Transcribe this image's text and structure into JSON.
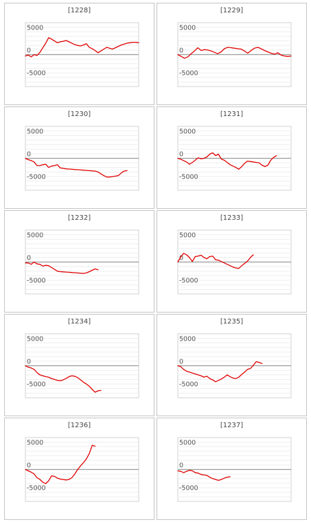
{
  "chart_data": [
    {
      "type": "line",
      "title": "[1228]",
      "ylim": [
        -7000,
        7000
      ],
      "yticks": [
        {
          "value": 5000,
          "label": "5000"
        },
        {
          "value": 0,
          "label": "0"
        },
        {
          "value": -5000,
          "label": "-5000"
        }
      ],
      "grid": true,
      "line_color": "#e00000",
      "x": [
        0,
        1,
        2,
        3,
        4,
        5,
        6,
        7,
        8,
        9,
        10,
        11,
        12,
        13,
        14,
        15,
        16,
        17,
        18,
        19,
        20,
        21,
        22,
        23,
        24,
        25,
        26,
        27,
        28,
        29,
        30,
        31,
        32,
        33,
        34,
        35,
        36,
        37,
        38,
        39
      ],
      "values": [
        -300,
        -100,
        -500,
        0,
        -200,
        500,
        1500,
        2500,
        3700,
        3400,
        3000,
        2600,
        2800,
        2900,
        3100,
        2800,
        2500,
        2200,
        2000,
        1900,
        2100,
        2400,
        1600,
        1300,
        900,
        400,
        800,
        1200,
        1600,
        1400,
        1200,
        1500,
        1800,
        2100,
        2300,
        2500,
        2600,
        2700,
        2700,
        2600
      ]
    },
    {
      "type": "line",
      "title": "[1229]",
      "ylim": [
        -7000,
        7000
      ],
      "yticks": [
        {
          "value": 5000,
          "label": "5000"
        },
        {
          "value": 0,
          "label": "0"
        },
        {
          "value": -5000,
          "label": "-5000"
        }
      ],
      "grid": true,
      "line_color": "#e00000",
      "x": [
        0,
        1,
        2,
        3,
        4,
        5,
        6,
        7,
        8,
        9,
        10,
        11,
        12,
        13,
        14,
        15,
        16,
        17,
        18,
        19,
        20,
        21,
        22,
        23,
        24,
        25,
        26,
        27,
        28,
        29,
        30,
        31,
        32,
        33,
        34
      ],
      "values": [
        0,
        -400,
        -800,
        -500,
        200,
        800,
        1500,
        900,
        1100,
        1000,
        800,
        500,
        200,
        600,
        1300,
        1600,
        1500,
        1400,
        1300,
        1200,
        800,
        300,
        900,
        1400,
        1600,
        1300,
        900,
        600,
        300,
        100,
        400,
        -100,
        -300,
        -400,
        -300
      ]
    },
    {
      "type": "line",
      "title": "[1230]",
      "ylim": [
        -7000,
        7000
      ],
      "yticks": [
        {
          "value": 5000,
          "label": "5000"
        },
        {
          "value": 0,
          "label": "0"
        },
        {
          "value": -5000,
          "label": "-5000"
        }
      ],
      "grid": true,
      "line_color": "#e00000",
      "x": [
        0,
        1,
        2,
        3,
        4,
        5,
        6,
        7,
        8,
        9,
        10,
        11,
        12,
        13,
        14,
        15,
        16,
        17,
        18,
        19,
        20,
        21,
        22,
        23,
        24,
        25,
        26,
        27,
        28,
        29,
        30,
        31,
        32,
        33,
        34,
        35,
        36,
        37,
        38,
        39
      ],
      "values": [
        0,
        -300,
        -500,
        -800,
        -1600,
        -1600,
        -1400,
        -1300,
        -2000,
        -1700,
        -1600,
        -1400,
        -2100,
        -2200,
        -2300,
        -2350,
        -2400,
        -2450,
        -2500,
        -2550,
        -2600,
        -2650,
        -2700,
        -2750,
        -2800,
        -3000,
        -3400,
        -3800,
        -4100,
        -4100,
        -4000,
        -3900,
        -3800,
        -3200,
        -2800,
        -2700,
        null,
        null,
        null,
        null
      ]
    },
    {
      "type": "line",
      "title": "[1231]",
      "ylim": [
        -7000,
        7000
      ],
      "yticks": [
        {
          "value": 5000,
          "label": "5000"
        },
        {
          "value": 0,
          "label": "0"
        },
        {
          "value": -5000,
          "label": "-5000"
        }
      ],
      "grid": true,
      "line_color": "#e00000",
      "x": [
        0,
        1,
        2,
        3,
        4,
        5,
        6,
        7,
        8,
        9,
        10,
        11,
        12,
        13,
        14,
        15,
        16,
        17,
        18,
        19,
        20,
        21,
        22,
        23,
        24,
        25,
        26,
        27,
        28,
        29,
        30,
        31,
        32,
        33,
        34,
        35,
        36,
        37,
        38,
        39
      ],
      "values": [
        0,
        -200,
        -500,
        -800,
        -1300,
        -900,
        -400,
        100,
        -100,
        0,
        300,
        900,
        1200,
        600,
        900,
        -200,
        -400,
        -900,
        -1400,
        -1700,
        -2000,
        -2400,
        -1800,
        -1100,
        -600,
        -700,
        -800,
        -900,
        -1000,
        -1500,
        -1800,
        -1500,
        -400,
        200,
        600,
        null,
        null,
        null,
        null,
        null
      ]
    },
    {
      "type": "line",
      "title": "[1232]",
      "ylim": [
        -7000,
        7000
      ],
      "yticks": [
        {
          "value": 5000,
          "label": "5000"
        },
        {
          "value": 0,
          "label": "0"
        },
        {
          "value": -5000,
          "label": "-5000"
        }
      ],
      "grid": true,
      "line_color": "#e00000",
      "x": [
        0,
        1,
        2,
        3,
        4,
        5,
        6,
        7,
        8,
        9,
        10,
        11,
        12,
        13,
        14,
        15,
        16,
        17,
        18,
        19,
        20,
        21,
        22,
        23,
        24,
        25,
        26,
        27,
        28,
        29,
        30,
        31,
        32,
        33,
        34,
        35,
        36,
        37,
        38,
        39
      ],
      "values": [
        -200,
        -200,
        -500,
        0,
        -400,
        -500,
        -900,
        -700,
        -800,
        -1200,
        -1600,
        -2000,
        -2100,
        -2150,
        -2200,
        -2250,
        -2300,
        -2350,
        -2400,
        -2450,
        -2500,
        -2400,
        -2100,
        -1800,
        -1500,
        -1700,
        null,
        null,
        null,
        null,
        null,
        null,
        null,
        null,
        null,
        null,
        null,
        null,
        null,
        null
      ]
    },
    {
      "type": "line",
      "title": "[1233]",
      "ylim": [
        -7000,
        7000
      ],
      "yticks": [
        {
          "value": 5000,
          "label": "5000"
        },
        {
          "value": 0,
          "label": "0"
        },
        {
          "value": -5000,
          "label": "-5000"
        }
      ],
      "grid": true,
      "line_color": "#e00000",
      "x": [
        0,
        1,
        2,
        3,
        4,
        5,
        6,
        7,
        8,
        9,
        10,
        11,
        12,
        13,
        14,
        15,
        16,
        17,
        18,
        19,
        20,
        21,
        22,
        23,
        24,
        25,
        26,
        27,
        28,
        29,
        30,
        31,
        32,
        33,
        34,
        35,
        36,
        37,
        38,
        39
      ],
      "values": [
        0,
        1100,
        1900,
        1600,
        1000,
        100,
        1200,
        1300,
        1500,
        1000,
        700,
        1200,
        1300,
        500,
        400,
        100,
        -200,
        -500,
        -800,
        -1100,
        -1300,
        -1400,
        -800,
        -300,
        200,
        1000,
        1600,
        null,
        null,
        null,
        null,
        null,
        null,
        null,
        null,
        null,
        null,
        null,
        null,
        null
      ]
    },
    {
      "type": "line",
      "title": "[1234]",
      "ylim": [
        -7000,
        7000
      ],
      "yticks": [
        {
          "value": 5000,
          "label": "5000"
        },
        {
          "value": 0,
          "label": "0"
        },
        {
          "value": -5000,
          "label": "-5000"
        }
      ],
      "grid": true,
      "line_color": "#e00000",
      "x": [
        0,
        1,
        2,
        3,
        4,
        5,
        6,
        7,
        8,
        9,
        10,
        11,
        12,
        13,
        14,
        15,
        16,
        17,
        18,
        19,
        20,
        21,
        22,
        23,
        24,
        25,
        26,
        27,
        28,
        29,
        30,
        31,
        32,
        33,
        34,
        35,
        36,
        37,
        38,
        39
      ],
      "values": [
        0,
        -300,
        -500,
        -800,
        -1500,
        -2000,
        -2200,
        -2400,
        -2500,
        -2800,
        -3000,
        -3200,
        -3300,
        -3100,
        -2800,
        -2400,
        -2200,
        -2300,
        -2600,
        -3100,
        -3600,
        -4000,
        -4500,
        -5200,
        -5800,
        -5500,
        -5400,
        null,
        null,
        null,
        null,
        null,
        null,
        null,
        null,
        null,
        null,
        null,
        null,
        null
      ]
    },
    {
      "type": "line",
      "title": "[1235]",
      "ylim": [
        -7000,
        7000
      ],
      "yticks": [
        {
          "value": 5000,
          "label": "5000"
        },
        {
          "value": 0,
          "label": "0"
        },
        {
          "value": -5000,
          "label": "-5000"
        }
      ],
      "grid": true,
      "line_color": "#e00000",
      "x": [
        0,
        1,
        2,
        3,
        4,
        5,
        6,
        7,
        8,
        9,
        10,
        11,
        12,
        13,
        14,
        15,
        16,
        17,
        18,
        19,
        20,
        21,
        22,
        23,
        24,
        25,
        26,
        27,
        28,
        29,
        30,
        31,
        32,
        33,
        34,
        35,
        36,
        37,
        38,
        39
      ],
      "values": [
        0,
        -200,
        -800,
        -1200,
        -1400,
        -1600,
        -1800,
        -2000,
        -2200,
        -2500,
        -2300,
        -2800,
        -3100,
        -3500,
        -3200,
        -2900,
        -2500,
        -2000,
        -2400,
        -2700,
        -2800,
        -2500,
        -1900,
        -1400,
        -800,
        -600,
        100,
        900,
        700,
        500,
        null,
        null,
        null,
        null,
        null,
        null,
        null,
        null,
        null,
        null
      ]
    },
    {
      "type": "line",
      "title": "[1236]",
      "ylim": [
        -7000,
        7000
      ],
      "yticks": [
        {
          "value": 5000,
          "label": "5000"
        },
        {
          "value": 0,
          "label": "0"
        },
        {
          "value": -5000,
          "label": "-5000"
        }
      ],
      "grid": true,
      "line_color": "#e00000",
      "x": [
        0,
        1,
        2,
        3,
        4,
        5,
        6,
        7,
        8,
        9,
        10,
        11,
        12,
        13,
        14,
        15,
        16,
        17,
        18,
        19,
        20,
        21,
        22,
        23,
        24,
        25,
        26,
        27,
        28,
        29,
        30,
        31,
        32,
        33,
        34,
        35,
        36,
        37,
        38,
        39
      ],
      "values": [
        0,
        -300,
        -600,
        -1000,
        -1800,
        -2200,
        -2800,
        -3100,
        -2500,
        -1400,
        -1500,
        -1900,
        -2100,
        -2200,
        -2300,
        -2200,
        -1800,
        -1000,
        0,
        800,
        1500,
        2300,
        3500,
        5300,
        5100,
        null,
        null,
        null,
        null,
        null,
        null,
        null,
        null,
        null,
        null,
        null,
        null,
        null,
        null,
        null
      ]
    },
    {
      "type": "line",
      "title": "[1237]",
      "ylim": [
        -7000,
        7000
      ],
      "yticks": [
        {
          "value": 5000,
          "label": "5000"
        },
        {
          "value": 0,
          "label": "0"
        },
        {
          "value": -5000,
          "label": "-5000"
        }
      ],
      "grid": true,
      "line_color": "#e00000",
      "x": [
        0,
        1,
        2,
        3,
        4,
        5,
        6,
        7,
        8,
        9,
        10,
        11,
        12,
        13,
        14,
        15,
        16,
        17,
        18,
        19,
        20,
        21,
        22,
        23,
        24,
        25,
        26,
        27,
        28,
        29,
        30,
        31,
        32,
        33,
        34,
        35,
        36,
        37,
        38,
        39
      ],
      "values": [
        -300,
        -400,
        -700,
        -400,
        -200,
        -300,
        -700,
        -800,
        -1100,
        -1200,
        -1300,
        -1700,
        -2000,
        -2200,
        -2400,
        -2200,
        -1900,
        -1700,
        -1600,
        null,
        null,
        null,
        null,
        null,
        null,
        null,
        null,
        null,
        null,
        null,
        null,
        null,
        null,
        null,
        null,
        null,
        null,
        null,
        null,
        null
      ]
    }
  ]
}
